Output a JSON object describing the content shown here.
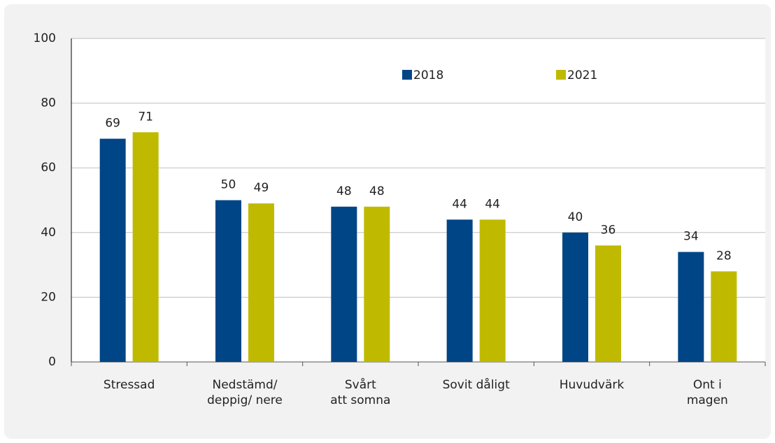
{
  "chart_data": {
    "type": "bar",
    "categories": [
      [
        "Stressad"
      ],
      [
        "Nedstämd/",
        "deppig/ nere"
      ],
      [
        "Svårt",
        "att somna"
      ],
      [
        "Sovit dåligt"
      ],
      [
        "Huvudvärk"
      ],
      [
        "Ont i",
        "magen"
      ]
    ],
    "series": [
      {
        "name": "2018",
        "color": "#004586",
        "values": [
          69,
          50,
          48,
          44,
          40,
          34
        ]
      },
      {
        "name": "2021",
        "color": "#bfba00",
        "values": [
          71,
          49,
          48,
          44,
          36,
          28
        ]
      }
    ],
    "ylim": [
      0,
      100
    ],
    "yticks": [
      0,
      20,
      40,
      60,
      80,
      100
    ],
    "grid": true,
    "legend": "top"
  }
}
